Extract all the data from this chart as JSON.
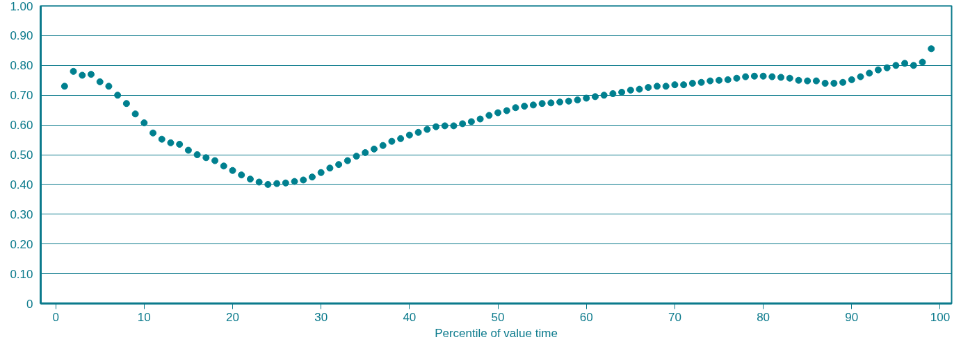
{
  "chart_data": {
    "type": "scatter",
    "xlabel": "Percentile of value time",
    "x": [
      1,
      2,
      3,
      4,
      5,
      6,
      7,
      8,
      9,
      10,
      11,
      12,
      13,
      14,
      15,
      16,
      17,
      18,
      19,
      20,
      21,
      22,
      23,
      24,
      25,
      26,
      27,
      28,
      29,
      30,
      31,
      32,
      33,
      34,
      35,
      36,
      37,
      38,
      39,
      40,
      41,
      42,
      43,
      44,
      45,
      46,
      47,
      48,
      49,
      50,
      51,
      52,
      53,
      54,
      55,
      56,
      57,
      58,
      59,
      60,
      61,
      62,
      63,
      64,
      65,
      66,
      67,
      68,
      69,
      70,
      71,
      72,
      73,
      74,
      75,
      76,
      77,
      78,
      79,
      80,
      81,
      82,
      83,
      84,
      85,
      86,
      87,
      88,
      89,
      90,
      91,
      92,
      93,
      94,
      95,
      96,
      97,
      98,
      99
    ],
    "series": [
      {
        "color": "#00808f",
        "values": [
          0.73,
          0.78,
          0.767,
          0.77,
          0.745,
          0.73,
          0.7,
          0.672,
          0.637,
          0.607,
          0.573,
          0.552,
          0.54,
          0.535,
          0.515,
          0.5,
          0.49,
          0.48,
          0.462,
          0.447,
          0.432,
          0.418,
          0.408,
          0.4,
          0.403,
          0.405,
          0.41,
          0.415,
          0.425,
          0.44,
          0.455,
          0.467,
          0.48,
          0.495,
          0.507,
          0.519,
          0.531,
          0.545,
          0.554,
          0.566,
          0.575,
          0.585,
          0.594,
          0.597,
          0.597,
          0.604,
          0.611,
          0.62,
          0.632,
          0.641,
          0.648,
          0.658,
          0.663,
          0.667,
          0.672,
          0.674,
          0.677,
          0.68,
          0.684,
          0.69,
          0.695,
          0.7,
          0.705,
          0.71,
          0.717,
          0.72,
          0.726,
          0.73,
          0.73,
          0.735,
          0.735,
          0.74,
          0.743,
          0.748,
          0.75,
          0.752,
          0.757,
          0.762,
          0.764,
          0.764,
          0.762,
          0.76,
          0.757,
          0.75,
          0.748,
          0.748,
          0.74,
          0.74,
          0.743,
          0.752,
          0.762,
          0.774,
          0.785,
          0.792,
          0.8,
          0.807,
          0.8,
          0.811,
          0.856
        ]
      }
    ],
    "xlim": [
      -1.7,
      101.3
    ],
    "ylim": [
      0,
      1
    ],
    "xticks": [
      0,
      10,
      20,
      30,
      40,
      50,
      60,
      70,
      80,
      90,
      100
    ],
    "yticks": [
      {
        "value": 0,
        "label": "0"
      },
      {
        "value": 0.1,
        "label": "0.10"
      },
      {
        "value": 0.2,
        "label": "0.20"
      },
      {
        "value": 0.3,
        "label": "0.30"
      },
      {
        "value": 0.4,
        "label": "0.40"
      },
      {
        "value": 0.5,
        "label": "0.50"
      },
      {
        "value": 0.6,
        "label": "0.60"
      },
      {
        "value": 0.7,
        "label": "0.70"
      },
      {
        "value": 0.8,
        "label": "0.80"
      },
      {
        "value": 0.9,
        "label": "0.90"
      },
      {
        "value": 1,
        "label": "1.00"
      }
    ],
    "grid": "y",
    "marker": "circle"
  }
}
